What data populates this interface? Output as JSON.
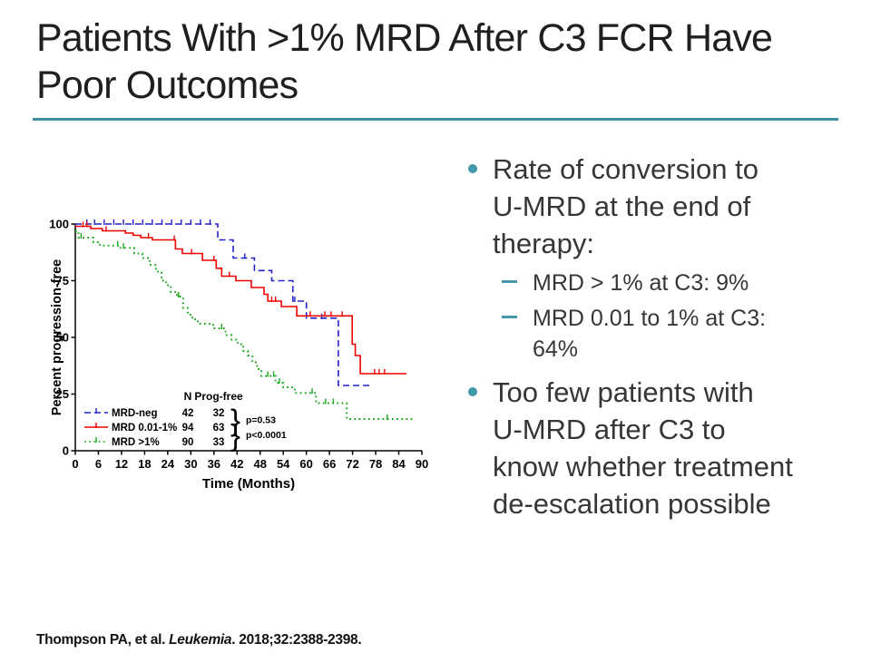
{
  "slide": {
    "title": "Patients With >1% MRD After C3 FCR Have\nPoor Outcomes",
    "accent_color": "#3e8fa3",
    "bullet_color": "#4297ab",
    "background": "#ffffff"
  },
  "content": {
    "bullets": [
      {
        "level": 1,
        "text": "Rate of conversion to\nU-MRD at the end of\ntherapy:"
      },
      {
        "level": 2,
        "text": "MRD > 1% at C3: 9%"
      },
      {
        "level": 2,
        "text": "MRD 0.01 to 1% at C3:\n64%"
      },
      {
        "level": 1,
        "text": "Too few patients with\nU-MRD after C3 to\nknow whether treatment\nde-escalation possible"
      }
    ]
  },
  "citation": {
    "prefix": "Thompson PA, et al. ",
    "journal": "Leukemia",
    "suffix": ". 2018;32:2388-2398."
  },
  "chart_data": {
    "type": "line",
    "subtype": "kaplan-meier-step",
    "title": "",
    "xlabel": "Time (Months)",
    "ylabel": "Percent progression-free",
    "xlim": [
      0,
      90
    ],
    "ylim": [
      0,
      100
    ],
    "xticks": [
      0,
      6,
      12,
      18,
      24,
      30,
      36,
      42,
      48,
      54,
      60,
      66,
      72,
      78,
      84,
      90
    ],
    "yticks": [
      0,
      25,
      50,
      75,
      100
    ],
    "grid": false,
    "legend_position": "inside-bottom-left",
    "legend_headers": [
      "N",
      "Prog-free"
    ],
    "series": [
      {
        "name": "MRD-neg",
        "color": "#2222cc",
        "dash": "dashed",
        "n": 42,
        "prog_free": 32,
        "points": [
          [
            0,
            100
          ],
          [
            37,
            100
          ],
          [
            37,
            93
          ],
          [
            41,
            93
          ],
          [
            41,
            85
          ],
          [
            46.5,
            85
          ],
          [
            46.5,
            79.5
          ],
          [
            51,
            79.5
          ],
          [
            51,
            75
          ],
          [
            56.5,
            75
          ],
          [
            56.5,
            66
          ],
          [
            60,
            66
          ],
          [
            60,
            58.5
          ],
          [
            68.3,
            58.5
          ],
          [
            68.3,
            28.8
          ],
          [
            77,
            28.8
          ]
        ],
        "censor_x": [
          3,
          5,
          7.5,
          10,
          12.5,
          15,
          17.5,
          20,
          22.5,
          25,
          27.5,
          30,
          32.5,
          35,
          44,
          57,
          64
        ]
      },
      {
        "name": "MRD 0.01-1%",
        "color": "#ee0000",
        "dash": "solid",
        "n": 94,
        "prog_free": 63,
        "points": [
          [
            0,
            99
          ],
          [
            4,
            99
          ],
          [
            4,
            98
          ],
          [
            7,
            98
          ],
          [
            7,
            97
          ],
          [
            13,
            97
          ],
          [
            13,
            96
          ],
          [
            15,
            96
          ],
          [
            15,
            95
          ],
          [
            17,
            95
          ],
          [
            17,
            94
          ],
          [
            20,
            94
          ],
          [
            20,
            93
          ],
          [
            26,
            93
          ],
          [
            26,
            89
          ],
          [
            27.8,
            89
          ],
          [
            27.8,
            87
          ],
          [
            33,
            87
          ],
          [
            33,
            84
          ],
          [
            36.6,
            84
          ],
          [
            36.6,
            80.5
          ],
          [
            38,
            80.5
          ],
          [
            38,
            77
          ],
          [
            41.7,
            77
          ],
          [
            41.7,
            75
          ],
          [
            45.7,
            75
          ],
          [
            45.7,
            72
          ],
          [
            49,
            72
          ],
          [
            49,
            69
          ],
          [
            50,
            69
          ],
          [
            50,
            66
          ],
          [
            53.5,
            66
          ],
          [
            53.5,
            63.6
          ],
          [
            57.5,
            63.6
          ],
          [
            57.5,
            59.5
          ],
          [
            71.9,
            59.5
          ],
          [
            71.9,
            47
          ],
          [
            72.7,
            47
          ],
          [
            72.7,
            42
          ],
          [
            74,
            42
          ],
          [
            74,
            34
          ],
          [
            86,
            34
          ]
        ],
        "censor_x": [
          2,
          3,
          8,
          19,
          25.7,
          30.2,
          36,
          40,
          51,
          52,
          61,
          64.8,
          66.4,
          69.3,
          77.7,
          78.9,
          80.3
        ]
      },
      {
        "name": "MRD >1%",
        "color": "#18a818",
        "dash": "dotted",
        "n": 90,
        "prog_free": 33,
        "points": [
          [
            0,
            97
          ],
          [
            0.8,
            97
          ],
          [
            0.8,
            94
          ],
          [
            4.7,
            94
          ],
          [
            4.7,
            92
          ],
          [
            6.4,
            92
          ],
          [
            6.4,
            90.5
          ],
          [
            11.5,
            90.5
          ],
          [
            11.5,
            89.5
          ],
          [
            15.3,
            89.5
          ],
          [
            15.3,
            87
          ],
          [
            17.4,
            87
          ],
          [
            17.4,
            85
          ],
          [
            19.3,
            85
          ],
          [
            19.3,
            82
          ],
          [
            21,
            82
          ],
          [
            21,
            79
          ],
          [
            22.4,
            79
          ],
          [
            22.4,
            75
          ],
          [
            23.6,
            75
          ],
          [
            23.6,
            73
          ],
          [
            24.8,
            73
          ],
          [
            24.8,
            70
          ],
          [
            26.4,
            70
          ],
          [
            26.4,
            68
          ],
          [
            28,
            68
          ],
          [
            28,
            63
          ],
          [
            29.2,
            63
          ],
          [
            29.2,
            60
          ],
          [
            30.4,
            60
          ],
          [
            30.4,
            58
          ],
          [
            31.8,
            58
          ],
          [
            31.8,
            56
          ],
          [
            35.8,
            56
          ],
          [
            35.8,
            54
          ],
          [
            39,
            54
          ],
          [
            39,
            51
          ],
          [
            40.6,
            51
          ],
          [
            40.6,
            49
          ],
          [
            42.2,
            49
          ],
          [
            42.2,
            47
          ],
          [
            43.6,
            47
          ],
          [
            43.6,
            44
          ],
          [
            44.8,
            44
          ],
          [
            44.8,
            42
          ],
          [
            46,
            42
          ],
          [
            46,
            39
          ],
          [
            47.2,
            39
          ],
          [
            47.2,
            36
          ],
          [
            48.3,
            36
          ],
          [
            48.3,
            33
          ],
          [
            52,
            33
          ],
          [
            52,
            30
          ],
          [
            54,
            30
          ],
          [
            54,
            28
          ],
          [
            57,
            28
          ],
          [
            57,
            25.5
          ],
          [
            62.5,
            25.5
          ],
          [
            62.5,
            21
          ],
          [
            70.5,
            21
          ],
          [
            70.5,
            14
          ],
          [
            87.5,
            14
          ]
        ],
        "censor_x": [
          1.5,
          11,
          12.5,
          26.8,
          38,
          50,
          51.5,
          53,
          61.5,
          65,
          67,
          81
        ]
      }
    ],
    "pvalues": [
      {
        "label": "p=0.53",
        "between": [
          "MRD-neg",
          "MRD 0.01-1%"
        ],
        "brace_char": "}"
      },
      {
        "label": "p<0.0001",
        "between": [
          "MRD 0.01-1%",
          "MRD >1%"
        ],
        "brace_char": "}"
      }
    ]
  }
}
